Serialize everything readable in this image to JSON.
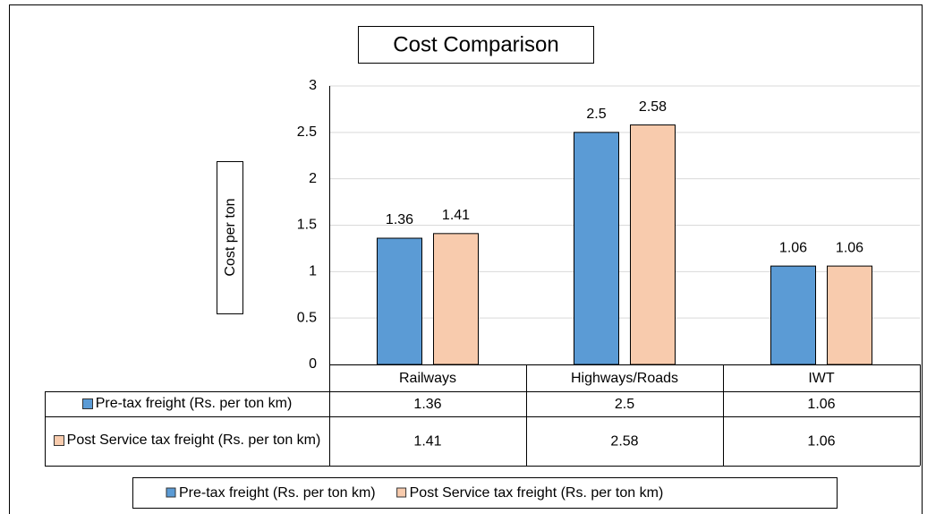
{
  "chart_data": {
    "type": "bar",
    "title": "Cost Comparison",
    "y_label": "Cost per ton",
    "categories": [
      "Railways",
      "Highways/Roads",
      "IWT"
    ],
    "series": [
      {
        "name": "Pre-tax freight (Rs. per ton km)",
        "color": "#5b9bd5",
        "values": [
          1.36,
          2.5,
          1.06
        ]
      },
      {
        "name": "Post Service tax freight (Rs. per ton km)",
        "color": "#f8cbad",
        "values": [
          1.41,
          2.58,
          1.06
        ]
      }
    ],
    "ylim": [
      0,
      3
    ],
    "yticks": [
      0,
      0.5,
      1,
      1.5,
      2,
      2.5,
      3
    ],
    "grid": true,
    "legend": "bottom",
    "data_table": true
  }
}
